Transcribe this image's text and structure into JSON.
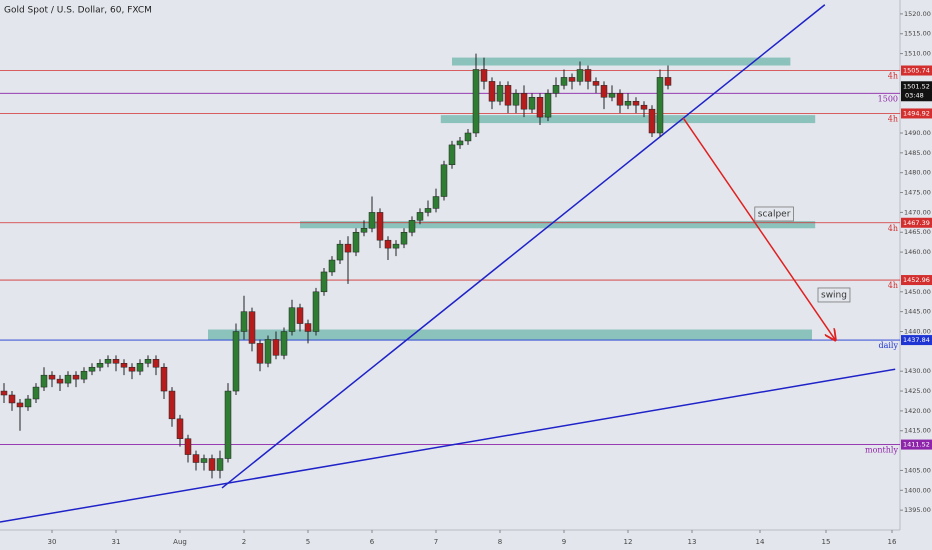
{
  "chart_data": {
    "type": "candlestick",
    "title": "Gold Spot / U.S. Dollar, 60, FXCM",
    "xlim": [
      -0.5,
      112
    ],
    "ylim": [
      1390,
      1523.5
    ],
    "xticks": [
      {
        "value": 6,
        "label": "30"
      },
      {
        "value": 14,
        "label": "31"
      },
      {
        "value": 22,
        "label": "Aug"
      },
      {
        "value": 30,
        "label": "2"
      },
      {
        "value": 38,
        "label": "5"
      },
      {
        "value": 46,
        "label": "6"
      },
      {
        "value": 54,
        "label": "7"
      },
      {
        "value": 62,
        "label": "8"
      },
      {
        "value": 70,
        "label": "9"
      },
      {
        "value": 78,
        "label": "12"
      },
      {
        "value": 86,
        "label": "13"
      },
      {
        "value": 94.5,
        "label": "14"
      },
      {
        "value": 102.75,
        "label": "15"
      },
      {
        "value": 111,
        "label": "16"
      }
    ],
    "yticks": [
      {
        "value": 1520,
        "label": "1520.00"
      },
      {
        "value": 1515,
        "label": "1515.00"
      },
      {
        "value": 1510,
        "label": "1510.00"
      },
      {
        "value": 1490,
        "label": "1490.00"
      },
      {
        "value": 1485,
        "label": "1485.00"
      },
      {
        "value": 1480,
        "label": "1480.00"
      },
      {
        "value": 1475,
        "label": "1475.00"
      },
      {
        "value": 1470,
        "label": "1470.00"
      },
      {
        "value": 1465,
        "label": "1465.00"
      },
      {
        "value": 1460,
        "label": "1460.00"
      },
      {
        "value": 1450,
        "label": "1450.00"
      },
      {
        "value": 1445,
        "label": "1445.00"
      },
      {
        "value": 1440,
        "label": "1440.00"
      },
      {
        "value": 1430,
        "label": "1430.00"
      },
      {
        "value": 1425,
        "label": "1425.00"
      },
      {
        "value": 1420,
        "label": "1420.00"
      },
      {
        "value": 1415,
        "label": "1415.00"
      },
      {
        "value": 1405,
        "label": "1405.00"
      },
      {
        "value": 1400,
        "label": "1400.00"
      },
      {
        "value": 1395,
        "label": "1395.00"
      }
    ],
    "up_color": "#2e7d32",
    "down_color": "#b71c1c",
    "candles": [
      [
        1425,
        1427,
        1422,
        1424
      ],
      [
        1424,
        1425,
        1420,
        1422
      ],
      [
        1422,
        1423,
        1415,
        1421
      ],
      [
        1421,
        1424,
        1420,
        1423
      ],
      [
        1423,
        1427,
        1422,
        1426
      ],
      [
        1426,
        1431,
        1425,
        1429
      ],
      [
        1429,
        1430,
        1426,
        1428
      ],
      [
        1428,
        1429,
        1425,
        1427
      ],
      [
        1427,
        1430,
        1426,
        1429
      ],
      [
        1429,
        1430,
        1426,
        1428
      ],
      [
        1428,
        1431,
        1427,
        1430
      ],
      [
        1430,
        1432,
        1429,
        1431
      ],
      [
        1431,
        1433,
        1430,
        1432
      ],
      [
        1432,
        1434,
        1431,
        1433
      ],
      [
        1433,
        1434,
        1430,
        1432
      ],
      [
        1432,
        1433,
        1429,
        1431
      ],
      [
        1431,
        1432,
        1428,
        1430
      ],
      [
        1430,
        1433,
        1429,
        1432
      ],
      [
        1432,
        1434,
        1431,
        1433
      ],
      [
        1433,
        1434,
        1429,
        1431
      ],
      [
        1431,
        1432,
        1423,
        1425
      ],
      [
        1425,
        1426,
        1416,
        1418
      ],
      [
        1418,
        1419,
        1411,
        1413
      ],
      [
        1413,
        1414,
        1407,
        1409
      ],
      [
        1409,
        1410,
        1405,
        1407
      ],
      [
        1407,
        1409,
        1405,
        1408
      ],
      [
        1408,
        1409,
        1403,
        1405
      ],
      [
        1405,
        1410,
        1403,
        1408
      ],
      [
        1408,
        1427,
        1407,
        1425
      ],
      [
        1425,
        1442,
        1424,
        1440
      ],
      [
        1440,
        1449,
        1438,
        1445
      ],
      [
        1445,
        1446,
        1435,
        1437
      ],
      [
        1437,
        1438,
        1430,
        1432
      ],
      [
        1432,
        1439,
        1431,
        1438
      ],
      [
        1438,
        1440,
        1433,
        1434
      ],
      [
        1434,
        1441,
        1433,
        1440
      ],
      [
        1440,
        1448,
        1439,
        1446
      ],
      [
        1446,
        1447,
        1440,
        1442
      ],
      [
        1442,
        1443,
        1437,
        1440
      ],
      [
        1440,
        1451,
        1439,
        1450
      ],
      [
        1450,
        1456,
        1449,
        1455
      ],
      [
        1455,
        1459,
        1454,
        1458
      ],
      [
        1458,
        1463,
        1457,
        1462
      ],
      [
        1462,
        1464,
        1452,
        1460
      ],
      [
        1460,
        1466,
        1459,
        1465
      ],
      [
        1465,
        1468,
        1464,
        1466
      ],
      [
        1466,
        1474,
        1465,
        1470
      ],
      [
        1470,
        1471,
        1461,
        1463
      ],
      [
        1463,
        1464,
        1458,
        1461
      ],
      [
        1461,
        1463,
        1459,
        1462
      ],
      [
        1462,
        1466,
        1461,
        1465
      ],
      [
        1465,
        1469,
        1464,
        1468
      ],
      [
        1468,
        1471,
        1467,
        1470
      ],
      [
        1470,
        1473,
        1469,
        1471
      ],
      [
        1471,
        1476,
        1470,
        1474
      ],
      [
        1474,
        1483,
        1473,
        1482
      ],
      [
        1482,
        1488,
        1481,
        1487
      ],
      [
        1487,
        1489,
        1486,
        1488
      ],
      [
        1488,
        1491,
        1487,
        1490
      ],
      [
        1490,
        1510,
        1489,
        1506
      ],
      [
        1506,
        1509,
        1501,
        1503
      ],
      [
        1503,
        1504,
        1496,
        1498
      ],
      [
        1498,
        1503,
        1497,
        1502
      ],
      [
        1502,
        1503,
        1495,
        1497
      ],
      [
        1497,
        1501,
        1495,
        1500
      ],
      [
        1500,
        1502,
        1494,
        1496
      ],
      [
        1496,
        1500,
        1495,
        1499
      ],
      [
        1499,
        1500,
        1492,
        1494
      ],
      [
        1494,
        1501,
        1493,
        1500
      ],
      [
        1500,
        1504,
        1499,
        1502
      ],
      [
        1502,
        1506,
        1501,
        1504
      ],
      [
        1504,
        1505,
        1501,
        1503
      ],
      [
        1503,
        1508,
        1502,
        1506
      ],
      [
        1506,
        1507,
        1501,
        1503
      ],
      [
        1503,
        1504,
        1500,
        1502
      ],
      [
        1502,
        1503,
        1496,
        1499
      ],
      [
        1499,
        1502,
        1498,
        1500
      ],
      [
        1500,
        1501,
        1495,
        1497
      ],
      [
        1497,
        1500,
        1496,
        1498
      ],
      [
        1498,
        1499,
        1495,
        1497
      ],
      [
        1497,
        1498,
        1494,
        1496
      ],
      [
        1496,
        1497,
        1489,
        1490
      ],
      [
        1490,
        1506,
        1489,
        1504
      ],
      [
        1504,
        1507,
        1501,
        1502
      ]
    ],
    "zones": [
      {
        "top": 1509,
        "bottom": 1507,
        "from": 56,
        "to": 98.3
      },
      {
        "top": 1494.5,
        "bottom": 1492.5,
        "from": 54.6,
        "to": 101.4
      },
      {
        "top": 1467.8,
        "bottom": 1466,
        "from": 37,
        "to": 101.4
      },
      {
        "top": 1440.5,
        "bottom": 1437.8,
        "from": 25.5,
        "to": 101
      }
    ],
    "zone_color": "#6fb5ac",
    "levels": [
      {
        "value": 1505.74,
        "label": "1505.74",
        "tag": "4h",
        "color": "#d32f2f"
      },
      {
        "value": 1500,
        "label": "1500.00",
        "tag": "1500",
        "color": "#8e24aa"
      },
      {
        "value": 1494.92,
        "label": "1494.92",
        "tag": "4h",
        "color": "#d32f2f"
      },
      {
        "value": 1467.39,
        "label": "1467.39",
        "tag": "4h",
        "color": "#d32f2f"
      },
      {
        "value": 1452.96,
        "label": "1452.96",
        "tag": "4h",
        "color": "#d32f2f"
      },
      {
        "value": 1437.84,
        "label": "1437.84",
        "tag": "daily",
        "color": "#1e35d4"
      },
      {
        "value": 1411.52,
        "label": "1411.52",
        "tag": "monthly",
        "color": "#8e24aa"
      }
    ],
    "current_price": {
      "value": 1501.52,
      "label": "1501.52",
      "countdown": "03:48"
    },
    "trendlines": [
      {
        "from": [
          -0.5,
          1392
        ],
        "to": [
          111.4,
          1430.5
        ],
        "color": "#1e22c8"
      },
      {
        "from": [
          27.25,
          1400.6
        ],
        "to": [
          102.6,
          1522.3
        ],
        "color": "#1e22c8"
      }
    ],
    "arrow": {
      "from": [
        84.9,
        1493.8
      ],
      "to": [
        103.9,
        1437.9
      ],
      "color": "#e02020"
    },
    "annotations": [
      {
        "text": "scalper",
        "at": [
          94.1,
          1469.6
        ]
      },
      {
        "text": "swing",
        "at": [
          102,
          1449.2
        ]
      }
    ]
  }
}
